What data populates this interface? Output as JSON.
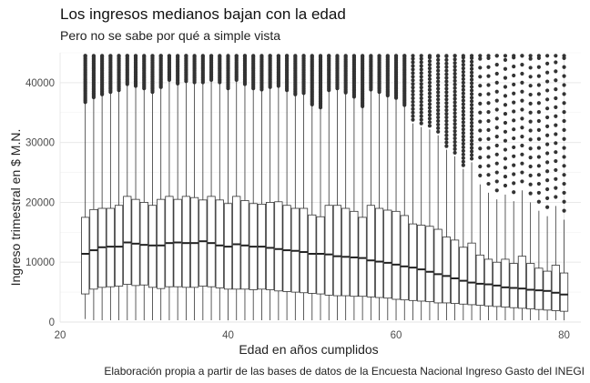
{
  "chart_data": {
    "type": "boxplot",
    "title": "Los ingresos medianos bajan con la edad",
    "subtitle": "Pero no se sabe por qué a simple vista",
    "xlabel": "Edad en años cumplidos",
    "ylabel": "Ingreso trimestral en $ M.N.",
    "caption": "Elaboración propia a partir de las bases de datos de la Encuesta Nacional Ingreso Gasto del INEGI",
    "xlim": [
      20,
      82
    ],
    "ylim": [
      0,
      45000
    ],
    "x_ticks": [
      20,
      40,
      60,
      80
    ],
    "y_ticks": [
      0,
      10000,
      20000,
      30000,
      40000
    ],
    "grid": true,
    "box_color": "#333333",
    "outlier_color": "#333333",
    "ages": [
      23,
      24,
      25,
      26,
      27,
      28,
      29,
      30,
      31,
      32,
      33,
      34,
      35,
      36,
      37,
      38,
      39,
      40,
      41,
      42,
      43,
      44,
      45,
      46,
      47,
      48,
      49,
      50,
      51,
      52,
      53,
      54,
      55,
      56,
      57,
      58,
      59,
      60,
      61,
      62,
      63,
      64,
      65,
      66,
      67,
      68,
      69,
      70,
      71,
      72,
      73,
      74,
      75,
      76,
      77,
      78,
      79,
      80
    ],
    "q1": [
      4700,
      5500,
      5800,
      5900,
      6000,
      6300,
      6100,
      6200,
      5800,
      5600,
      5900,
      5900,
      5800,
      5800,
      6000,
      5900,
      5700,
      5500,
      5500,
      5500,
      5400,
      5500,
      5400,
      5200,
      5100,
      5000,
      4900,
      4800,
      4700,
      4500,
      4400,
      4400,
      4300,
      4300,
      4200,
      4100,
      4000,
      3800,
      3700,
      3600,
      3500,
      3400,
      3200,
      3200,
      3100,
      3000,
      2900,
      2800,
      2700,
      2600,
      2500,
      2400,
      2300,
      2200,
      2100,
      2000,
      1900,
      1800
    ],
    "median": [
      11400,
      12000,
      12500,
      12600,
      12600,
      13300,
      13100,
      12900,
      12800,
      12800,
      13200,
      13300,
      13200,
      13200,
      13500,
      13200,
      12800,
      12600,
      13000,
      12800,
      12600,
      12600,
      12400,
      12200,
      12000,
      11900,
      11700,
      11400,
      11400,
      11300,
      11000,
      10900,
      10800,
      10700,
      10300,
      10100,
      9900,
      9600,
      9300,
      9100,
      8800,
      8400,
      8000,
      7700,
      7300,
      6900,
      6600,
      6400,
      6300,
      6100,
      5800,
      5700,
      5600,
      5400,
      5300,
      5200,
      4900,
      4600
    ],
    "q3": [
      17500,
      18800,
      19000,
      19000,
      19500,
      21000,
      20500,
      20000,
      19500,
      20500,
      21000,
      20500,
      21000,
      20800,
      20400,
      21000,
      20400,
      19800,
      21000,
      20300,
      19800,
      19700,
      20000,
      20100,
      19500,
      19000,
      19000,
      17900,
      17600,
      19500,
      19500,
      19000,
      18500,
      17500,
      19500,
      19000,
      18700,
      18500,
      17800,
      16400,
      16200,
      16000,
      15500,
      14200,
      13700,
      12500,
      13200,
      11200,
      10500,
      10000,
      10500,
      9800,
      11000,
      9800,
      9000,
      8500,
      9500,
      8200
    ],
    "whisker_low": [
      500,
      300,
      300,
      300,
      300,
      300,
      300,
      300,
      300,
      300,
      300,
      300,
      300,
      300,
      300,
      300,
      300,
      300,
      300,
      300,
      300,
      300,
      300,
      300,
      300,
      300,
      300,
      300,
      300,
      300,
      300,
      300,
      300,
      300,
      300,
      300,
      300,
      300,
      300,
      300,
      300,
      300,
      300,
      300,
      300,
      300,
      300,
      300,
      300,
      300,
      300,
      300,
      300,
      300,
      300,
      300,
      300,
      300
    ],
    "whisker_high": [
      36500,
      37300,
      37800,
      38200,
      38500,
      39500,
      39200,
      38800,
      38200,
      39000,
      40200,
      39600,
      40000,
      39800,
      39800,
      40200,
      39800,
      38800,
      40200,
      39500,
      38800,
      38600,
      39000,
      39200,
      38500,
      37800,
      38000,
      36100,
      35600,
      38500,
      38800,
      38100,
      37400,
      35800,
      38600,
      38200,
      37600,
      37200,
      36000,
      33200,
      32600,
      32200,
      31200,
      28800,
      27700,
      25600,
      26700,
      23000,
      21600,
      20500,
      21300,
      20200,
      22000,
      20000,
      18600,
      17700,
      19400,
      17100
    ],
    "outlier_max": 44500
  }
}
